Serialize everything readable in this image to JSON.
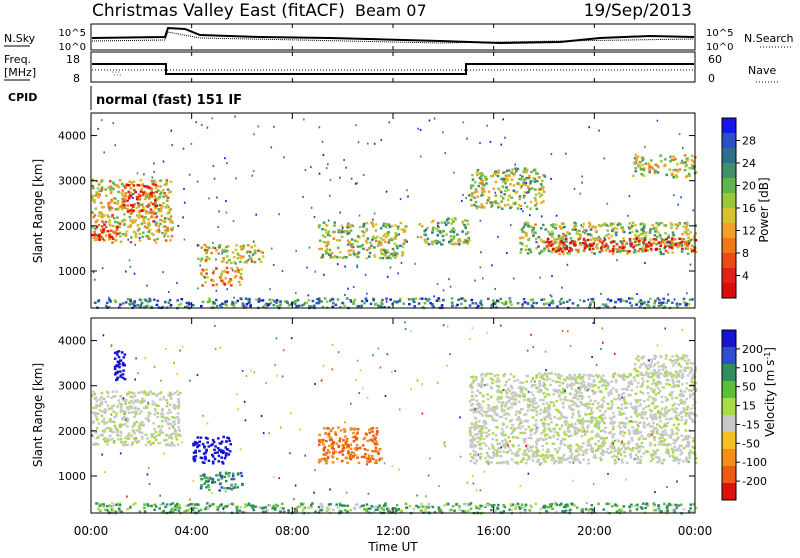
{
  "header": {
    "station": "Christmas Valley East (fitACF)",
    "beam": "Beam 07",
    "date": "19/Sep/2013"
  },
  "noise_panel": {
    "left_label": "N.Sky",
    "right_label": "N.Search",
    "left_ticks": [
      "10^5",
      "10^0"
    ],
    "right_ticks": [
      "10^5",
      "10^0"
    ]
  },
  "freq_panel": {
    "left_label_line1": "Freq.",
    "left_label_line2": "[MHz]",
    "right_label": "Nave",
    "left_ticks": [
      "18",
      "8"
    ],
    "right_ticks": [
      "60",
      "0"
    ]
  },
  "cpid": {
    "label": "CPID",
    "value": "normal (fast) 151 IF"
  },
  "x_axis": {
    "label": "Time UT",
    "ticks": [
      "00:00",
      "04:00",
      "08:00",
      "12:00",
      "16:00",
      "20:00",
      "00:00"
    ]
  },
  "power_panel": {
    "ylabel": "Slant Range [km]",
    "yticks": [
      "1000",
      "2000",
      "3000",
      "4000"
    ],
    "colorbar_label": "Power [dB]",
    "colorbar_ticks": [
      "4",
      "8",
      "12",
      "16",
      "20",
      "24",
      "28"
    ],
    "colors": [
      "#1616e8",
      "#2a4fc9",
      "#2f6f8e",
      "#3f8f6a",
      "#5fb54a",
      "#99c73a",
      "#d6c42e",
      "#f2a02a",
      "#f07a1a",
      "#ea4a14",
      "#e4201a",
      "#dd0c0c"
    ]
  },
  "velocity_panel": {
    "ylabel": "Slant Range [km]",
    "yticks": [
      "1000",
      "2000",
      "3000",
      "4000"
    ],
    "colorbar_label": "Velocity [m s",
    "colorbar_label_sup": "-1",
    "colorbar_label_end": "]",
    "colorbar_ticks": [
      "200",
      "100",
      "50",
      "15",
      "-15",
      "-50",
      "-100",
      "-200"
    ],
    "colors": [
      "#1414cc",
      "#2d4fcf",
      "#2f8f5a",
      "#5bbf3a",
      "#a6dd44",
      "#c8c8c8",
      "#f2c020",
      "#f0901a",
      "#ec5a14",
      "#e01010"
    ]
  },
  "chart_data": {
    "type": "heatmap",
    "x_range_hours": [
      0,
      24
    ],
    "y_range_km": [
      180,
      4500
    ],
    "power_regions": [
      {
        "t0": 0.0,
        "t1": 3.2,
        "r0": 1650,
        "r1": 3050,
        "level": 0.55
      },
      {
        "t0": 1.2,
        "t1": 2.6,
        "r0": 2300,
        "r1": 2950,
        "level": 0.85
      },
      {
        "t0": 0.0,
        "t1": 1.0,
        "r0": 1700,
        "r1": 2050,
        "level": 0.8
      },
      {
        "t0": 4.2,
        "t1": 6.8,
        "r0": 1200,
        "r1": 1600,
        "level": 0.55
      },
      {
        "t0": 4.3,
        "t1": 6.0,
        "r0": 700,
        "r1": 1100,
        "level": 0.65
      },
      {
        "t0": 9.0,
        "t1": 12.5,
        "r0": 1300,
        "r1": 2100,
        "level": 0.45
      },
      {
        "t0": 13.0,
        "t1": 15.0,
        "r0": 1600,
        "r1": 2200,
        "level": 0.4
      },
      {
        "t0": 15.0,
        "t1": 18.0,
        "r0": 2400,
        "r1": 3300,
        "level": 0.45
      },
      {
        "t0": 17.0,
        "t1": 24.0,
        "r0": 1400,
        "r1": 2100,
        "level": 0.45
      },
      {
        "t0": 18.0,
        "t1": 24.0,
        "r0": 1450,
        "r1": 1750,
        "level": 0.88
      },
      {
        "t0": 21.5,
        "t1": 24.0,
        "r0": 3100,
        "r1": 3600,
        "level": 0.5
      },
      {
        "t0": 0.0,
        "t1": 24.0,
        "r0": 200,
        "r1": 420,
        "level": 0.25
      }
    ],
    "velocity_regions": [
      {
        "t0": 0.0,
        "t1": 3.5,
        "r0": 1700,
        "r1": 2900,
        "value": 0
      },
      {
        "t0": 0.9,
        "t1": 1.3,
        "r0": 3100,
        "r1": 3800,
        "value": 200
      },
      {
        "t0": 4.0,
        "t1": 5.5,
        "r0": 1300,
        "r1": 1900,
        "value": 200
      },
      {
        "t0": 4.3,
        "t1": 6.0,
        "r0": 700,
        "r1": 1100,
        "value": 60
      },
      {
        "t0": 9.0,
        "t1": 11.5,
        "r0": 1300,
        "r1": 2100,
        "value": -80
      },
      {
        "t0": 15.0,
        "t1": 24.0,
        "r0": 1300,
        "r1": 3300,
        "value": 0
      },
      {
        "t0": 21.5,
        "t1": 24.0,
        "r0": 3200,
        "r1": 3700,
        "value": 0
      },
      {
        "t0": 0.0,
        "t1": 24.0,
        "r0": 200,
        "r1": 420,
        "value": 30
      }
    ]
  }
}
